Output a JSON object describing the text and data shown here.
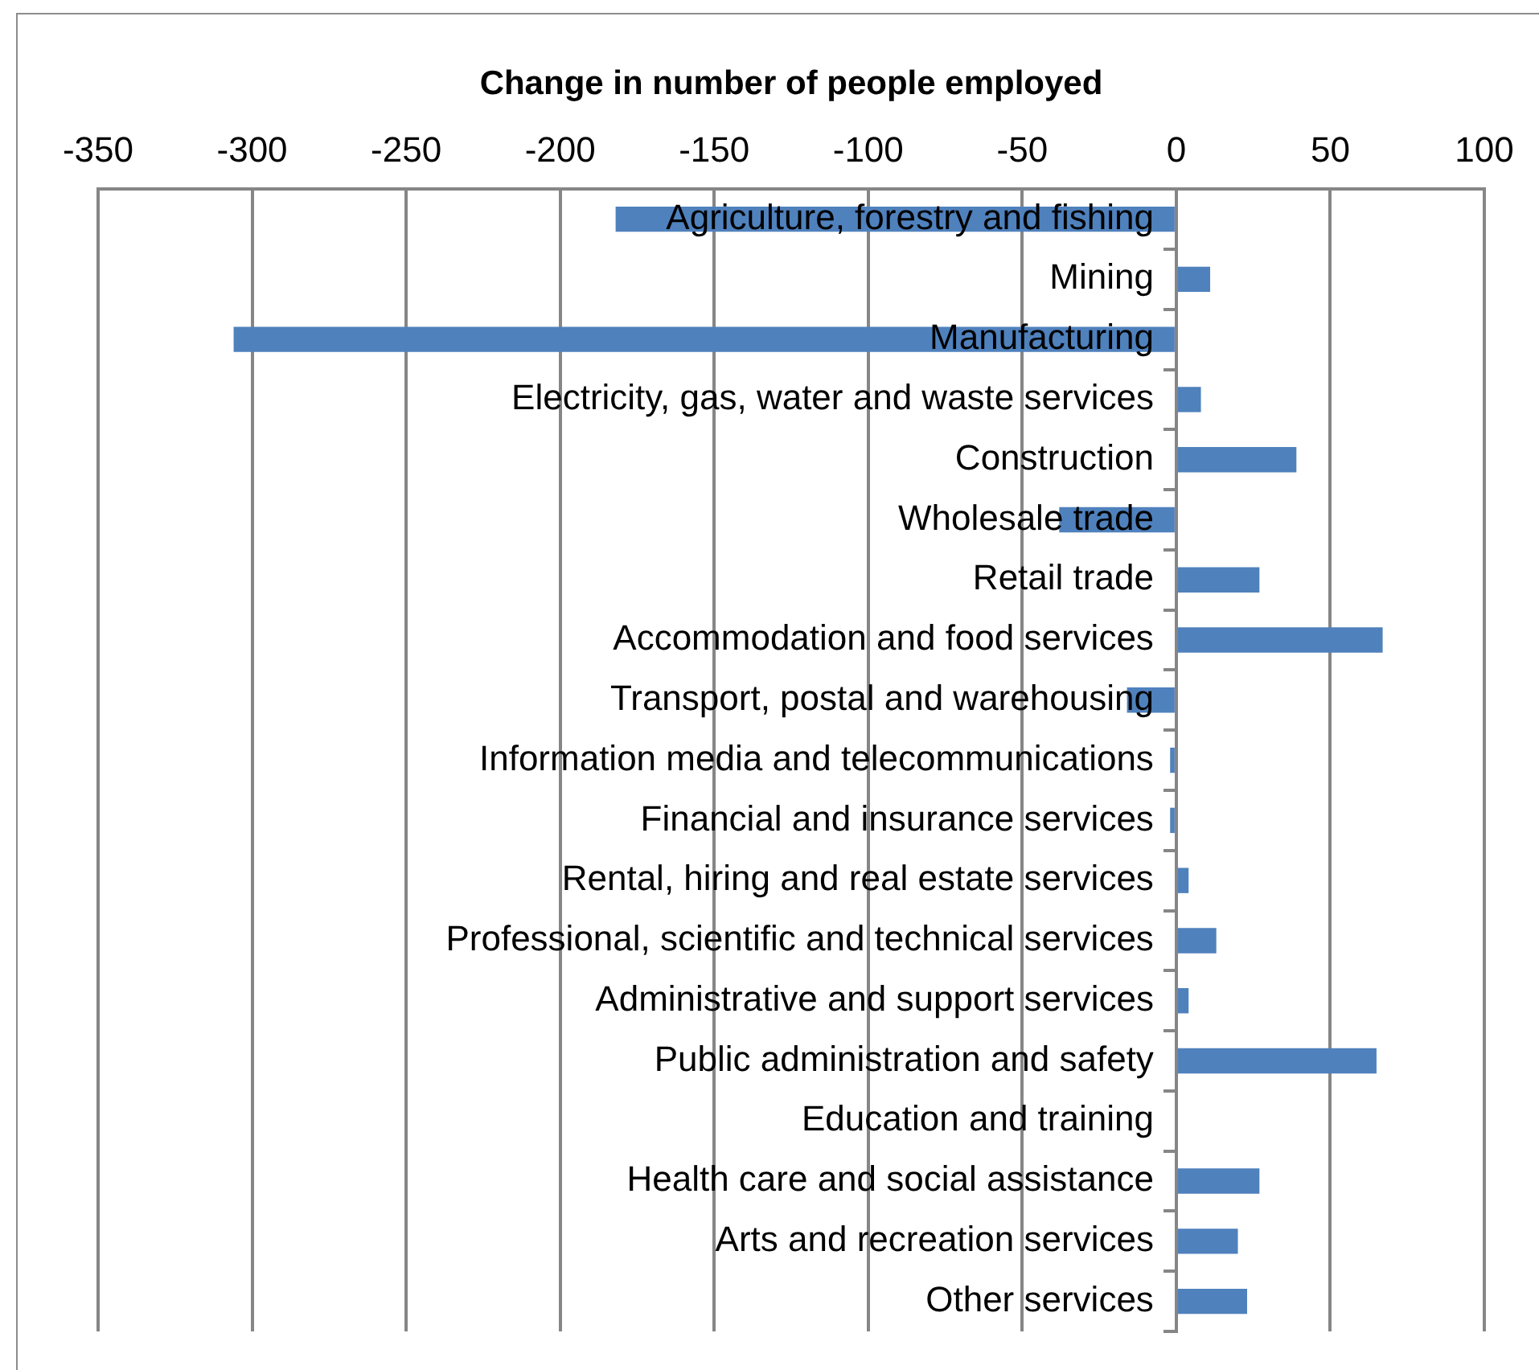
{
  "chart_data": {
    "type": "bar",
    "orientation": "horizontal",
    "title": "Change in number of people employed",
    "categories": [
      "Agriculture, forestry and fishing",
      "Mining",
      "Manufacturing",
      "Electricity, gas, water and waste services",
      "Construction",
      "Wholesale trade",
      "Retail trade",
      "Accommodation and food services",
      "Transport, postal and warehousing",
      "Information media and telecommunications",
      "Financial and insurance services",
      "Rental, hiring and real estate services",
      "Professional, scientific and technical services",
      "Administrative and support services",
      "Public administration and safety",
      "Education and training",
      "Health care and social assistance",
      "Arts and recreation services",
      "Other services"
    ],
    "values": [
      -182,
      11,
      -306,
      8,
      39,
      -38,
      27,
      67,
      -16,
      -2,
      -2,
      4,
      13,
      4,
      65,
      0,
      27,
      20,
      23
    ],
    "color": "#4f81bd",
    "xlim": [
      -350,
      100
    ],
    "xticks": [
      -350,
      -300,
      -250,
      -200,
      -150,
      -100,
      -50,
      0,
      50,
      100
    ],
    "grid": "x"
  }
}
